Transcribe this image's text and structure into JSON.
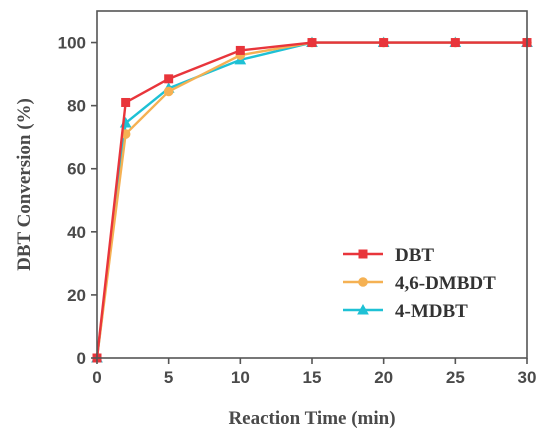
{
  "chart_data": {
    "type": "line",
    "title": "",
    "xlabel": "Reaction Time (min)",
    "ylabel": "DBT Conversion (%)",
    "xlim": [
      0,
      30
    ],
    "ylim": [
      0,
      110
    ],
    "xticks": [
      0,
      5,
      10,
      15,
      20,
      25,
      30
    ],
    "yticks": [
      0,
      20,
      40,
      60,
      80,
      100
    ],
    "grid": false,
    "legend_position": "bottom-right",
    "x": [
      0,
      2,
      5,
      10,
      15,
      20,
      25,
      30
    ],
    "series": [
      {
        "name": "DBT",
        "color": "#e8353b",
        "marker": "square",
        "values": [
          0,
          81,
          88.5,
          97.5,
          100,
          100,
          100,
          100
        ]
      },
      {
        "name": "4,6-DMBDT",
        "color": "#f5b153",
        "marker": "circle",
        "values": [
          0,
          71,
          84.5,
          96,
          100,
          100,
          100,
          100
        ]
      },
      {
        "name": "4-MDBT",
        "color": "#1ec1d5",
        "marker": "triangle",
        "values": [
          0,
          74.5,
          85.5,
          94.5,
          100,
          100,
          100,
          100
        ]
      }
    ]
  }
}
